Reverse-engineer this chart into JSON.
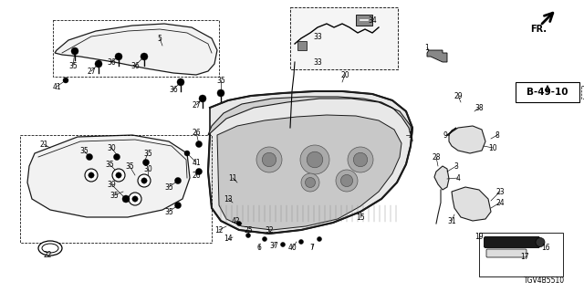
{
  "bg_color": "#ffffff",
  "diagram_number": "B-49-10",
  "part_number": "TGV4B5510",
  "lc": "#1a1a1a"
}
